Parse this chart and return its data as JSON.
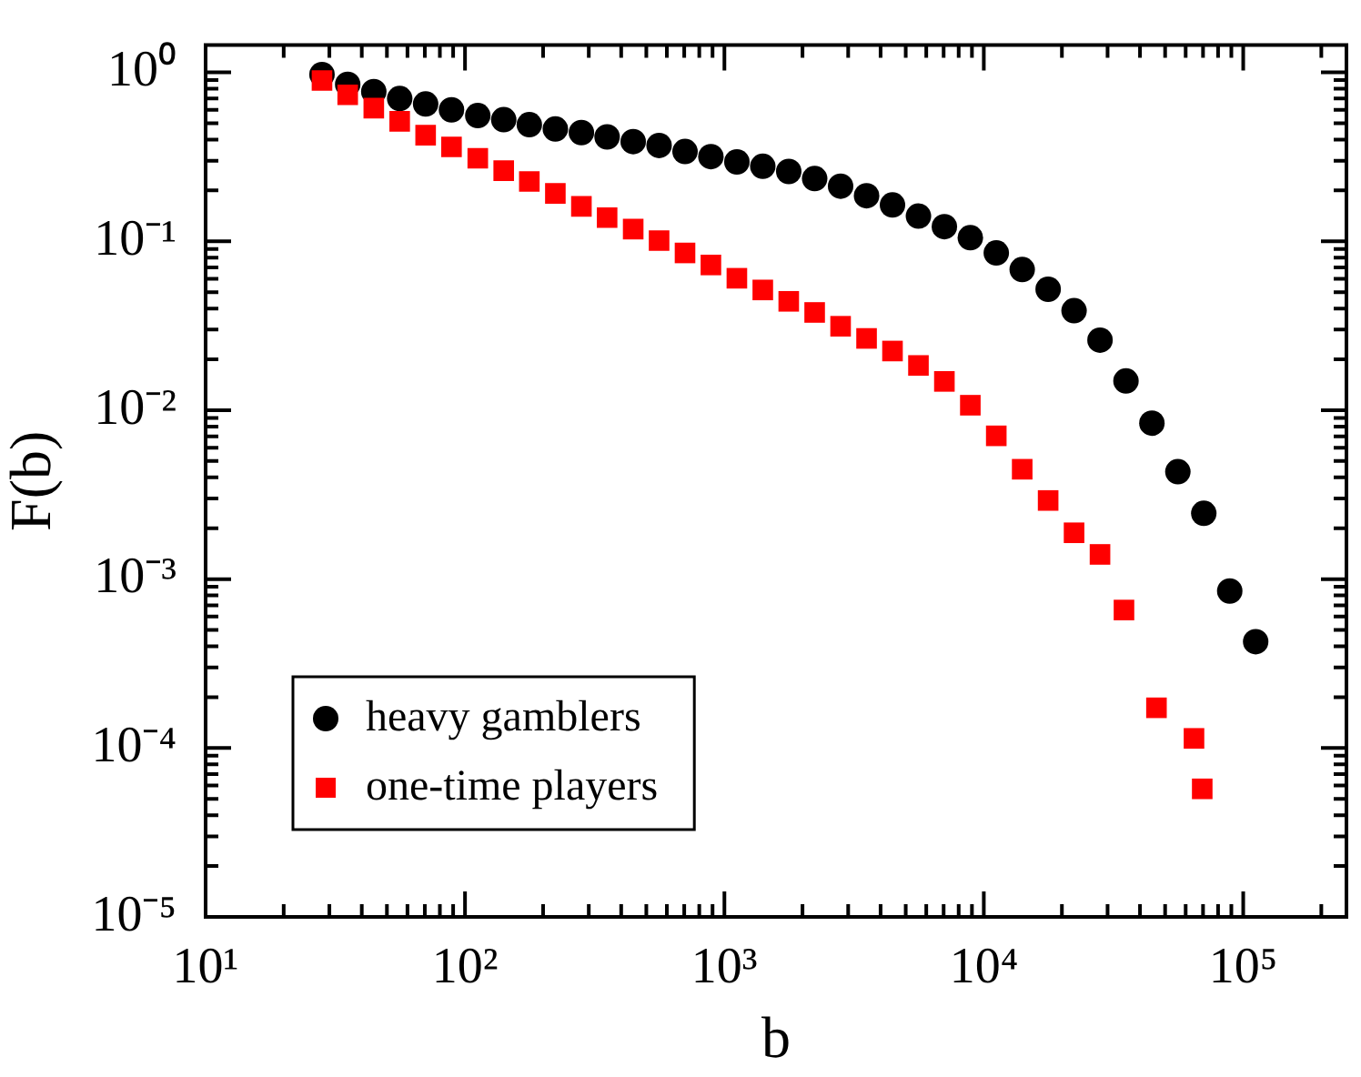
{
  "chart_data": {
    "type": "scatter",
    "xlabel": "b",
    "ylabel": "F(b)",
    "log": "xy",
    "legend": "bottom left",
    "xlim": [
      10,
      250000
    ],
    "ylim": [
      1e-05,
      1.45
    ],
    "xticks": [
      {
        "value": 10,
        "label": "10¹"
      },
      {
        "value": 20,
        "label": null
      },
      {
        "value": 30,
        "label": null
      },
      {
        "value": 40,
        "label": null
      },
      {
        "value": 50,
        "label": null
      },
      {
        "value": 60,
        "label": null
      },
      {
        "value": 70,
        "label": null
      },
      {
        "value": 80,
        "label": null
      },
      {
        "value": 90,
        "label": null
      },
      {
        "value": 100,
        "label": "10²"
      },
      {
        "value": 200,
        "label": null
      },
      {
        "value": 300,
        "label": null
      },
      {
        "value": 400,
        "label": null
      },
      {
        "value": 500,
        "label": null
      },
      {
        "value": 600,
        "label": null
      },
      {
        "value": 700,
        "label": null
      },
      {
        "value": 800,
        "label": null
      },
      {
        "value": 900,
        "label": null
      },
      {
        "value": 1000,
        "label": "10³"
      },
      {
        "value": 2000,
        "label": null
      },
      {
        "value": 3000,
        "label": null
      },
      {
        "value": 4000,
        "label": null
      },
      {
        "value": 5000,
        "label": null
      },
      {
        "value": 6000,
        "label": null
      },
      {
        "value": 7000,
        "label": null
      },
      {
        "value": 8000,
        "label": null
      },
      {
        "value": 9000,
        "label": null
      },
      {
        "value": 10000,
        "label": "10⁴"
      },
      {
        "value": 20000,
        "label": null
      },
      {
        "value": 30000,
        "label": null
      },
      {
        "value": 40000,
        "label": null
      },
      {
        "value": 50000,
        "label": null
      },
      {
        "value": 60000,
        "label": null
      },
      {
        "value": 70000,
        "label": null
      },
      {
        "value": 80000,
        "label": null
      },
      {
        "value": 90000,
        "label": null
      },
      {
        "value": 100000,
        "label": "10⁵"
      },
      {
        "value": 200000,
        "label": null
      }
    ],
    "yticks": [
      {
        "value": 1e-05,
        "label": "10⁻⁵"
      },
      {
        "value": 2e-05,
        "label": null
      },
      {
        "value": 3e-05,
        "label": null
      },
      {
        "value": 4e-05,
        "label": null
      },
      {
        "value": 5e-05,
        "label": null
      },
      {
        "value": 6e-05,
        "label": null
      },
      {
        "value": 7e-05,
        "label": null
      },
      {
        "value": 8e-05,
        "label": null
      },
      {
        "value": 9e-05,
        "label": null
      },
      {
        "value": 0.0001,
        "label": "10⁻⁴"
      },
      {
        "value": 0.0002,
        "label": null
      },
      {
        "value": 0.0003,
        "label": null
      },
      {
        "value": 0.0004,
        "label": null
      },
      {
        "value": 0.0005,
        "label": null
      },
      {
        "value": 0.0006,
        "label": null
      },
      {
        "value": 0.0007,
        "label": null
      },
      {
        "value": 0.0008,
        "label": null
      },
      {
        "value": 0.0009,
        "label": null
      },
      {
        "value": 0.001,
        "label": "10⁻³"
      },
      {
        "value": 0.002,
        "label": null
      },
      {
        "value": 0.003,
        "label": null
      },
      {
        "value": 0.004,
        "label": null
      },
      {
        "value": 0.005,
        "label": null
      },
      {
        "value": 0.006,
        "label": null
      },
      {
        "value": 0.007,
        "label": null
      },
      {
        "value": 0.008,
        "label": null
      },
      {
        "value": 0.009,
        "label": null
      },
      {
        "value": 0.01,
        "label": "10⁻²"
      },
      {
        "value": 0.02,
        "label": null
      },
      {
        "value": 0.03,
        "label": null
      },
      {
        "value": 0.04,
        "label": null
      },
      {
        "value": 0.05,
        "label": null
      },
      {
        "value": 0.06,
        "label": null
      },
      {
        "value": 0.07,
        "label": null
      },
      {
        "value": 0.08,
        "label": null
      },
      {
        "value": 0.09,
        "label": null
      },
      {
        "value": 0.1,
        "label": "10⁻¹"
      },
      {
        "value": 0.2,
        "label": null
      },
      {
        "value": 0.3,
        "label": null
      },
      {
        "value": 0.4,
        "label": null
      },
      {
        "value": 0.5,
        "label": null
      },
      {
        "value": 0.6,
        "label": null
      },
      {
        "value": 0.7,
        "label": null
      },
      {
        "value": 0.8,
        "label": null
      },
      {
        "value": 0.9,
        "label": null
      },
      {
        "value": 1,
        "label": "10⁰"
      }
    ],
    "series": [
      {
        "name": "heavy gamblers",
        "color": "#000000",
        "marker": "circle",
        "x": [
          28.1,
          35.3,
          44.5,
          56.0,
          70.5,
          88.7,
          112,
          141,
          177,
          223,
          281,
          353,
          445,
          560,
          705,
          887,
          1117,
          1406,
          1770,
          2228,
          2805,
          3532,
          4446,
          5598,
          7047,
          8872,
          11170,
          14060,
          17700,
          22280,
          28050,
          35320,
          44460,
          55980,
          70470,
          88720,
          111700
        ],
        "values": [
          0.97,
          0.85,
          0.77,
          0.7,
          0.65,
          0.6,
          0.555,
          0.525,
          0.49,
          0.462,
          0.44,
          0.415,
          0.389,
          0.369,
          0.34,
          0.317,
          0.295,
          0.278,
          0.259,
          0.235,
          0.212,
          0.186,
          0.164,
          0.141,
          0.122,
          0.105,
          0.0853,
          0.068,
          0.052,
          0.0388,
          0.026,
          0.0149,
          0.00838,
          0.00432,
          0.00245,
          0.00085,
          0.000426
        ]
      },
      {
        "name": "one-time players",
        "color": "#ff0000",
        "marker": "square",
        "x": [
          28.1,
          35.3,
          44.5,
          56.0,
          70.5,
          88.7,
          112,
          141,
          177,
          223,
          281,
          353,
          445,
          560,
          705,
          887,
          1117,
          1406,
          1770,
          2228,
          2805,
          3532,
          4446,
          5598,
          7047,
          8872,
          11170,
          14060,
          17700,
          22280,
          28050,
          34700,
          46300,
          64600,
          69500
        ],
        "values": [
          0.895,
          0.736,
          0.614,
          0.513,
          0.425,
          0.362,
          0.31,
          0.262,
          0.226,
          0.192,
          0.161,
          0.138,
          0.118,
          0.101,
          0.0853,
          0.0724,
          0.0604,
          0.0515,
          0.0441,
          0.0379,
          0.0314,
          0.0266,
          0.0224,
          0.0184,
          0.0148,
          0.0107,
          0.00705,
          0.00447,
          0.00292,
          0.00188,
          0.0014,
          0.000656,
          0.000173,
          0.000114,
          5.73e-05
        ]
      }
    ]
  }
}
